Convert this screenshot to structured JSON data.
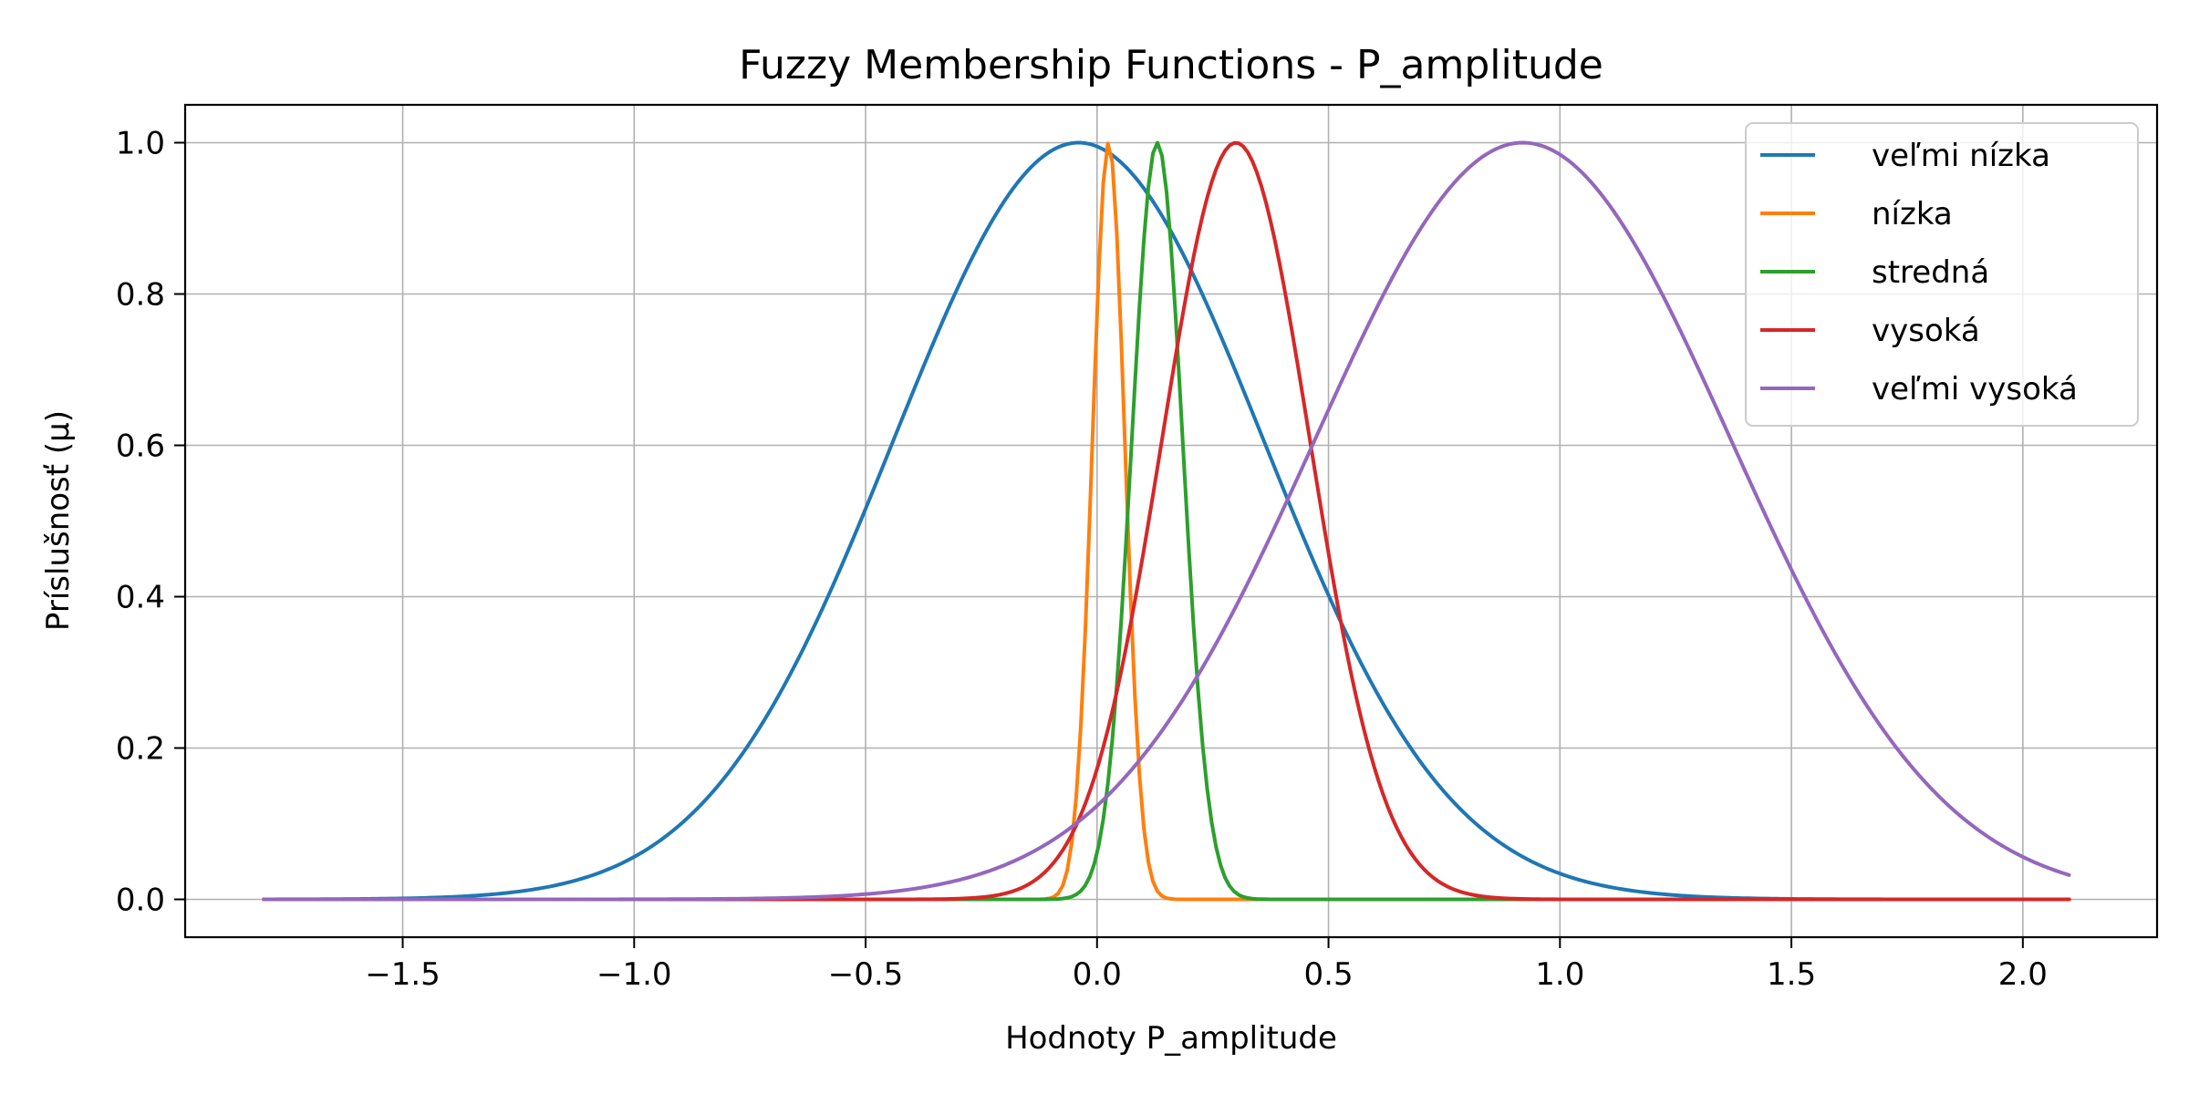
{
  "chart_data": {
    "type": "line",
    "title": "Fuzzy Membership Functions - P_amplitude",
    "xlabel": "Hodnoty P_amplitude",
    "ylabel": "Príslušnosť (μ)",
    "xlim": [
      -1.97,
      2.29
    ],
    "ylim": [
      -0.05,
      1.05
    ],
    "x_range": [
      -1.8,
      2.1
    ],
    "xticks": [
      -1.5,
      -1.0,
      -0.5,
      0.0,
      0.5,
      1.0,
      1.5,
      2.0
    ],
    "xtick_labels": [
      "−1.5",
      "−1.0",
      "−0.5",
      "0.0",
      "0.5",
      "1.0",
      "1.5",
      "2.0"
    ],
    "yticks": [
      0.0,
      0.2,
      0.4,
      0.6,
      0.8,
      1.0
    ],
    "ytick_labels": [
      "0.0",
      "0.2",
      "0.4",
      "0.6",
      "0.8",
      "1.0"
    ],
    "grid": true,
    "legend_position": "top-right",
    "series": [
      {
        "name": "veľmi nízka",
        "color": "#1f77b4",
        "shape": "gaussian",
        "center": -0.04,
        "sigma": 0.4,
        "peak": 1.0
      },
      {
        "name": "nízka",
        "color": "#ff7f0e",
        "shape": "gaussian",
        "center": 0.025,
        "sigma": 0.035,
        "peak": 1.0
      },
      {
        "name": "stredná",
        "color": "#2ca02c",
        "shape": "gaussian",
        "center": 0.13,
        "sigma": 0.055,
        "peak": 1.0
      },
      {
        "name": "vysoká",
        "color": "#d62728",
        "shape": "gaussian",
        "center": 0.3,
        "sigma": 0.16,
        "peak": 1.0
      },
      {
        "name": "veľmi vysoká",
        "color": "#9467bd",
        "shape": "gaussian",
        "center": 0.92,
        "sigma": 0.45,
        "peak": 1.0
      }
    ]
  }
}
